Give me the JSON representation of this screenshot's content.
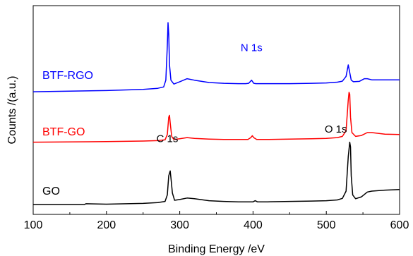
{
  "chart_data": {
    "type": "line",
    "title": "",
    "xlabel": "Binding Energy /eV",
    "ylabel": "Counts /(a.u.)",
    "xlim": [
      100,
      600
    ],
    "xticks": [
      100,
      200,
      300,
      400,
      500,
      600
    ],
    "ylim": [
      0,
      1
    ],
    "y_ticks_labeled": false,
    "grid": false,
    "legend": "inline labels next to each curve",
    "series": [
      {
        "name": "BTF-RGO",
        "color": "#0000ff",
        "offset": 0.588,
        "x": [
          100,
          200,
          250,
          270,
          278,
          281,
          283,
          284,
          285,
          286,
          288,
          292,
          300,
          310,
          320,
          340,
          360,
          380,
          390,
          394,
          398,
          401,
          404,
          420,
          450,
          480,
          500,
          515,
          522,
          527,
          530,
          532,
          534,
          537,
          545,
          552,
          556,
          562,
          580,
          600
        ],
        "y": [
          0.0,
          0.006,
          0.012,
          0.018,
          0.025,
          0.06,
          0.24,
          0.36,
          0.3,
          0.14,
          0.06,
          0.04,
          0.052,
          0.068,
          0.06,
          0.048,
          0.044,
          0.042,
          0.042,
          0.044,
          0.06,
          0.044,
          0.042,
          0.042,
          0.042,
          0.044,
          0.046,
          0.05,
          0.055,
          0.08,
          0.14,
          0.1,
          0.06,
          0.052,
          0.054,
          0.068,
          0.068,
          0.062,
          0.062,
          0.062
        ]
      },
      {
        "name": "BTF-GO",
        "color": "#ff0000",
        "offset": 0.325,
        "x": [
          100,
          200,
          250,
          270,
          280,
          283,
          285,
          286,
          287,
          289,
          292,
          300,
          310,
          320,
          340,
          360,
          380,
          393,
          397,
          399,
          401,
          405,
          420,
          450,
          480,
          500,
          515,
          522,
          527,
          530,
          531,
          532,
          533,
          535,
          540,
          548,
          556,
          562,
          580,
          600
        ],
        "y": [
          0.0,
          0.003,
          0.006,
          0.008,
          0.012,
          0.04,
          0.13,
          0.14,
          0.1,
          0.03,
          0.014,
          0.018,
          0.024,
          0.02,
          0.016,
          0.014,
          0.014,
          0.014,
          0.024,
          0.034,
          0.024,
          0.014,
          0.014,
          0.016,
          0.018,
          0.02,
          0.024,
          0.03,
          0.06,
          0.22,
          0.26,
          0.25,
          0.13,
          0.05,
          0.03,
          0.035,
          0.05,
          0.05,
          0.042,
          0.04
        ]
      },
      {
        "name": "GO",
        "color": "#000000",
        "offset": 0.0,
        "x": [
          100,
          170,
          172,
          200,
          250,
          270,
          280,
          283,
          285,
          287,
          288,
          290,
          293,
          300,
          310,
          320,
          340,
          360,
          380,
          400,
          403,
          406,
          420,
          450,
          480,
          500,
          515,
          522,
          527,
          530,
          532,
          533,
          534,
          536,
          540,
          548,
          556,
          562,
          580,
          600
        ],
        "y": [
          0.0,
          0.0,
          0.004,
          0.002,
          0.006,
          0.01,
          0.016,
          0.05,
          0.15,
          0.175,
          0.14,
          0.06,
          0.022,
          0.026,
          0.034,
          0.03,
          0.02,
          0.016,
          0.014,
          0.014,
          0.02,
          0.014,
          0.014,
          0.016,
          0.018,
          0.02,
          0.024,
          0.032,
          0.07,
          0.25,
          0.325,
          0.3,
          0.15,
          0.05,
          0.03,
          0.04,
          0.065,
          0.07,
          0.075,
          0.078
        ]
      }
    ],
    "annotations": [
      {
        "text": "N 1s",
        "x": 398,
        "y": 0.8,
        "color": "#0000ff"
      },
      {
        "text": "C 1s",
        "x": 283,
        "y": 0.325,
        "color": "#000000"
      },
      {
        "text": "O 1s",
        "x": 513,
        "y": 0.375,
        "color": "#000000"
      }
    ]
  }
}
